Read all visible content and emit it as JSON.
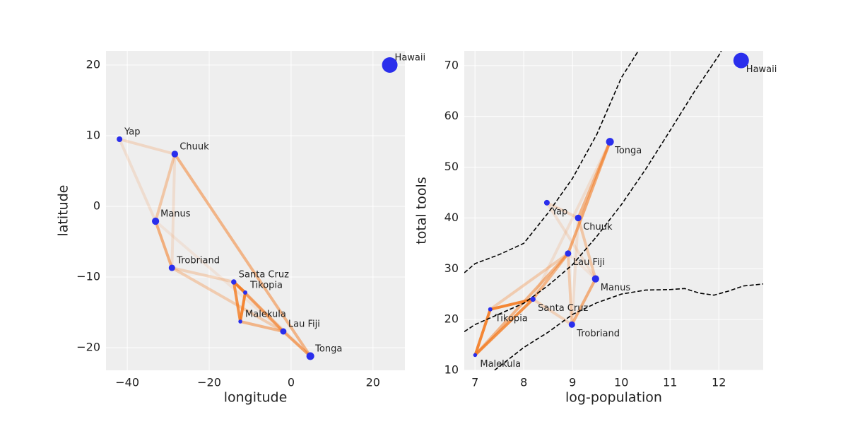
{
  "chart_data": [
    {
      "type": "scatter",
      "x_label": "longitude",
      "y_label": "latitude",
      "labels": [
        "Malekula",
        "Tikopia",
        "Santa Cruz",
        "Yap",
        "Lau Fiji",
        "Trobriand",
        "Chuuk",
        "Manus",
        "Tonga",
        "Hawaii"
      ],
      "x": [
        -12.4,
        -11.2,
        -14.0,
        -41.9,
        -1.9,
        -29.1,
        -28.4,
        -33.1,
        4.7,
        24.1
      ],
      "y": [
        -16.3,
        -12.2,
        -10.7,
        9.5,
        -17.7,
        -8.7,
        7.4,
        -2.1,
        -21.2,
        20.0
      ],
      "size": [
        1100,
        1500,
        3600,
        4791,
        7400,
        8000,
        9200,
        13000,
        17500,
        275000
      ],
      "edges": [
        {
          "from": 0,
          "to": 1,
          "weight": 0.9
        },
        {
          "from": 0,
          "to": 2,
          "weight": 0.8
        },
        {
          "from": 1,
          "to": 2,
          "weight": 0.9
        },
        {
          "from": 0,
          "to": 4,
          "weight": 0.5
        },
        {
          "from": 1,
          "to": 4,
          "weight": 0.3
        },
        {
          "from": 2,
          "to": 4,
          "weight": 0.5
        },
        {
          "from": 4,
          "to": 8,
          "weight": 0.6
        },
        {
          "from": 5,
          "to": 7,
          "weight": 0.55
        },
        {
          "from": 6,
          "to": 8,
          "weight": 0.5
        },
        {
          "from": 6,
          "to": 7,
          "weight": 0.35
        },
        {
          "from": 3,
          "to": 6,
          "weight": 0.2
        },
        {
          "from": 3,
          "to": 7,
          "weight": 0.15
        },
        {
          "from": 5,
          "to": 2,
          "weight": 0.25
        },
        {
          "from": 6,
          "to": 5,
          "weight": 0.15
        },
        {
          "from": 4,
          "to": 5,
          "weight": 0.3
        },
        {
          "from": 7,
          "to": 4,
          "weight": 0.1
        },
        {
          "from": 2,
          "to": 8,
          "weight": 0.15
        }
      ],
      "point_color": "#2a2eec",
      "edge_color": "#f47a1f",
      "xlim": [
        -45.2,
        27.8
      ],
      "ylim": [
        -23.2,
        22
      ],
      "xticks": [
        {
          "value": -40,
          "label": "−40"
        },
        {
          "value": -20,
          "label": "−20"
        },
        0,
        20
      ],
      "yticks": [
        {
          "value": -20,
          "label": "−20"
        },
        {
          "value": -10,
          "label": "−10"
        },
        0,
        10,
        20
      ],
      "grid": true
    },
    {
      "type": "scatter",
      "x_label": "log-population",
      "y_label": "total tools",
      "labels": [
        "Malekula",
        "Tikopia",
        "Santa Cruz",
        "Yap",
        "Lau Fiji",
        "Trobriand",
        "Chuuk",
        "Manus",
        "Tonga",
        "Hawaii"
      ],
      "x": [
        7.003,
        7.313,
        8.188,
        8.474,
        8.909,
        8.987,
        9.116,
        9.472,
        9.767,
        12.458
      ],
      "y": [
        13,
        22,
        24,
        43,
        33,
        19,
        40,
        28,
        55,
        71
      ],
      "size": [
        1100,
        1500,
        3600,
        4791,
        7400,
        8000,
        9200,
        13000,
        17500,
        275000
      ],
      "edges": [
        {
          "from": 0,
          "to": 1,
          "weight": 0.9
        },
        {
          "from": 0,
          "to": 2,
          "weight": 0.8
        },
        {
          "from": 1,
          "to": 2,
          "weight": 0.9
        },
        {
          "from": 0,
          "to": 4,
          "weight": 0.5
        },
        {
          "from": 1,
          "to": 4,
          "weight": 0.3
        },
        {
          "from": 2,
          "to": 4,
          "weight": 0.5
        },
        {
          "from": 4,
          "to": 8,
          "weight": 0.6
        },
        {
          "from": 5,
          "to": 7,
          "weight": 0.55
        },
        {
          "from": 6,
          "to": 8,
          "weight": 0.5
        },
        {
          "from": 6,
          "to": 7,
          "weight": 0.35
        },
        {
          "from": 3,
          "to": 6,
          "weight": 0.2
        },
        {
          "from": 3,
          "to": 7,
          "weight": 0.15
        },
        {
          "from": 5,
          "to": 2,
          "weight": 0.25
        },
        {
          "from": 6,
          "to": 5,
          "weight": 0.15
        },
        {
          "from": 4,
          "to": 5,
          "weight": 0.3
        },
        {
          "from": 7,
          "to": 4,
          "weight": 0.1
        },
        {
          "from": 2,
          "to": 8,
          "weight": 0.15
        }
      ],
      "curves": [
        {
          "x": [
            6.78,
            7,
            7.5,
            8,
            8.5,
            9,
            9.5,
            10,
            10.35
          ],
          "y": [
            29.2,
            31,
            32.8,
            35,
            41,
            47.8,
            56.5,
            67.6,
            72.9
          ]
        },
        {
          "x": [
            6.78,
            7,
            8,
            8.5,
            9,
            9.5,
            10,
            10.5,
            11,
            11.5,
            12,
            12.05
          ],
          "y": [
            17.6,
            19,
            23.2,
            26.7,
            30.8,
            36.4,
            42.6,
            49.6,
            57.2,
            64.9,
            72,
            72.9
          ]
        },
        {
          "x": [
            7.4,
            8,
            8.5,
            9,
            9.5,
            10,
            10.5,
            11,
            11.3,
            11.6,
            11.9,
            12.2,
            12.5,
            12.91
          ],
          "y": [
            10,
            14.5,
            17.5,
            21,
            23.3,
            25,
            25.8,
            25.9,
            26.1,
            25.2,
            24.8,
            25.6,
            26.6,
            27
          ]
        }
      ],
      "point_color": "#2a2eec",
      "edge_color": "#f47a1f",
      "curve_color": "#000000",
      "xlim": [
        6.78,
        12.91
      ],
      "ylim": [
        10,
        72.9
      ],
      "xticks": [
        7,
        8,
        9,
        10,
        11,
        12
      ],
      "yticks": [
        10,
        20,
        30,
        40,
        50,
        60,
        70
      ],
      "grid": true
    }
  ]
}
